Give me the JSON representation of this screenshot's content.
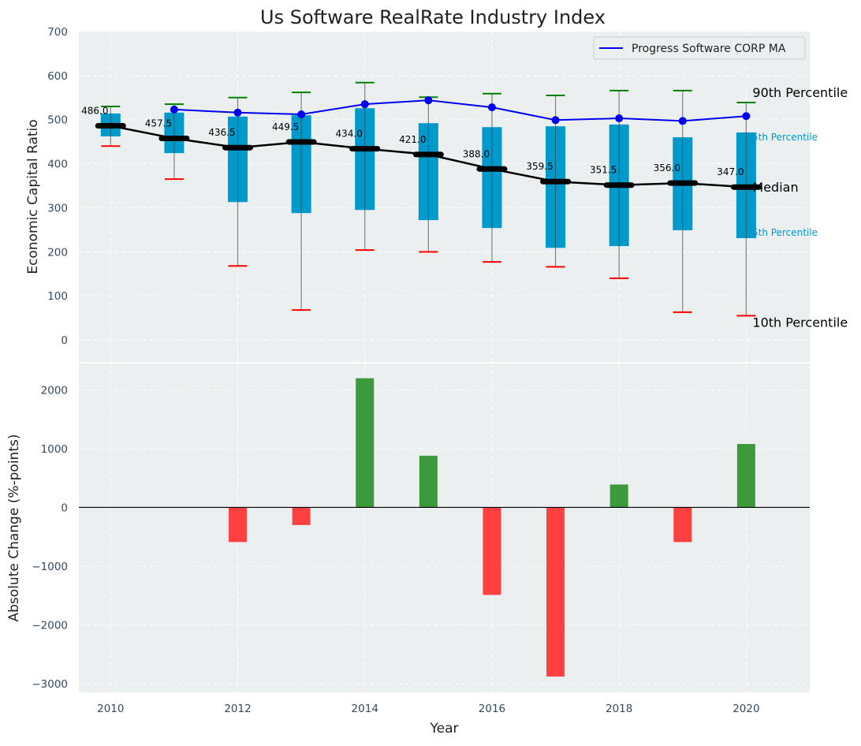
{
  "title": "Us Software RealRate Industry Index",
  "chart_data": [
    {
      "type": "box",
      "panel": "top",
      "title": "Us Software RealRate Industry Index",
      "xlabel": "",
      "ylabel": "Economic Capital Ratio",
      "ylim": [
        -50,
        700
      ],
      "yticks": [
        0,
        100,
        200,
        300,
        400,
        500,
        600,
        700
      ],
      "grid": true,
      "x": [
        2010,
        2011,
        2012,
        2013,
        2014,
        2015,
        2016,
        2017,
        2018,
        2019,
        2020
      ],
      "median": [
        486.0,
        457.5,
        436.5,
        449.5,
        434.0,
        421.0,
        388.0,
        359.5,
        351.5,
        356.0,
        347.0
      ],
      "median_labels": [
        "486.0",
        "457.5",
        "436.5",
        "449.5",
        "434.0",
        "421.0",
        "388.0",
        "359.5",
        "351.5",
        "356.0",
        "347.0"
      ],
      "p75": [
        514,
        516,
        507,
        510,
        526,
        492,
        483,
        485,
        489,
        460,
        471
      ],
      "p25": [
        462,
        424,
        313,
        288,
        295,
        272,
        254,
        209,
        213,
        249,
        231
      ],
      "p90": [
        530,
        535,
        550,
        562,
        584,
        551,
        559,
        555,
        566,
        566,
        539
      ],
      "p10": [
        440,
        365,
        168,
        68,
        204,
        200,
        177,
        166,
        140,
        63,
        55
      ],
      "series": [
        {
          "name": "Progress Software CORP MA",
          "x": [
            2011,
            2012,
            2013,
            2014,
            2015,
            2016,
            2017,
            2018,
            2019,
            2020
          ],
          "values": [
            523,
            516,
            512,
            535,
            544,
            528,
            499,
            503,
            497,
            508
          ],
          "color": "#0000ee"
        }
      ],
      "legend": {
        "entries": [
          "Progress Software CORP MA"
        ],
        "placement": "top-right"
      },
      "annotations": [
        "90th Percentile",
        "75th Percentile",
        "Median",
        "25th Percentile",
        "10th Percentile"
      ],
      "colors": {
        "box": "#0099cc",
        "median": "#000000",
        "p90_cap": "#008000",
        "p10_cap": "#ff0000",
        "whisker": "#808080"
      }
    },
    {
      "type": "bar",
      "panel": "bottom",
      "xlabel": "Year",
      "ylabel": "Absolute Change (%-points)",
      "ylim": [
        -3150,
        2450
      ],
      "yticks": [
        -3000,
        -2000,
        -1000,
        0,
        1000,
        2000
      ],
      "xticks": [
        2010,
        2012,
        2014,
        2016,
        2018,
        2020
      ],
      "xlim": [
        2009.5,
        2021
      ],
      "grid": true,
      "categories": [
        2012,
        2013,
        2014,
        2015,
        2016,
        2017,
        2018,
        2019,
        2020
      ],
      "values": [
        -590,
        -300,
        2200,
        880,
        -1490,
        -2880,
        390,
        -590,
        1080
      ],
      "colors": {
        "positive": "#3c9a3c",
        "negative": "#ff4040"
      }
    }
  ]
}
